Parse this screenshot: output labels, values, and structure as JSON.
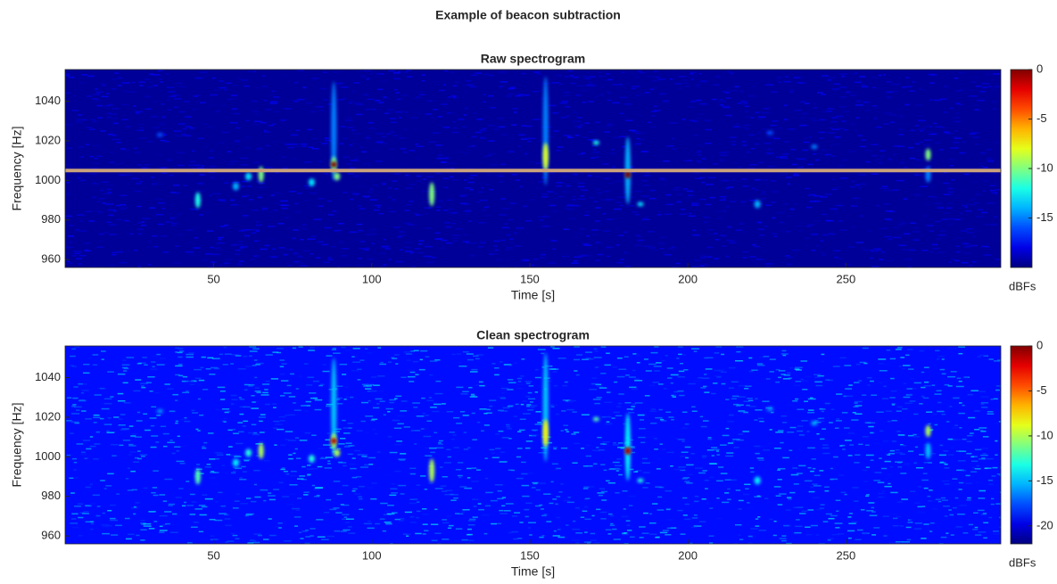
{
  "title": "Example of beacon subtraction",
  "chart_data": [
    {
      "type": "spectrogram",
      "title": "Raw spectrogram",
      "xlabel": "Time [s]",
      "ylabel": "Frequency [Hz]",
      "colorbar_label": "dBFs",
      "xlim": [
        3,
        299
      ],
      "xticks": [
        50,
        100,
        150,
        200,
        250
      ],
      "ylim": [
        956,
        1056
      ],
      "yticks": [
        960,
        980,
        1000,
        1020,
        1040
      ],
      "clim": [
        -20,
        0
      ],
      "cticks": [
        -15,
        -10,
        -5,
        0
      ],
      "colormap": "jet",
      "background_level": -19.5,
      "beacon": {
        "freq": 1005,
        "color": "#c9a27c"
      },
      "events": [
        {
          "time": 45,
          "freq": 990,
          "span": 8,
          "level": -12
        },
        {
          "time": 57,
          "freq": 997,
          "span": 4,
          "level": -14
        },
        {
          "time": 61,
          "freq": 1002,
          "span": 4,
          "level": -13
        },
        {
          "time": 65,
          "freq": 1003,
          "span": 8,
          "level": -10
        },
        {
          "time": 81,
          "freq": 999,
          "span": 4,
          "level": -13
        },
        {
          "time": 88,
          "freq": 1025,
          "span": 50,
          "level": -15
        },
        {
          "time": 88,
          "freq": 1008,
          "span": 8,
          "level": -10
        },
        {
          "time": 88,
          "freq": 1008,
          "span": 3,
          "level": 0
        },
        {
          "time": 89,
          "freq": 1002,
          "span": 4,
          "level": -10
        },
        {
          "time": 119,
          "freq": 993,
          "span": 12,
          "level": -10
        },
        {
          "time": 155,
          "freq": 1025,
          "span": 55,
          "level": -15
        },
        {
          "time": 155,
          "freq": 1012,
          "span": 14,
          "level": -8
        },
        {
          "time": 171,
          "freq": 1019,
          "span": 2,
          "level": -12
        },
        {
          "time": 181,
          "freq": 1005,
          "span": 34,
          "level": -14
        },
        {
          "time": 181,
          "freq": 1003,
          "span": 4,
          "level": 0
        },
        {
          "time": 185,
          "freq": 988,
          "span": 2,
          "level": -13
        },
        {
          "time": 222,
          "freq": 988,
          "span": 4,
          "level": -14
        },
        {
          "time": 276,
          "freq": 1013,
          "span": 6,
          "level": -10
        },
        {
          "time": 276,
          "freq": 1003,
          "span": 8,
          "level": -15
        },
        {
          "time": 33,
          "freq": 1023,
          "span": 2,
          "level": -16
        },
        {
          "time": 240,
          "freq": 1017,
          "span": 2,
          "level": -15
        },
        {
          "time": 226,
          "freq": 1024,
          "span": 2,
          "level": -16
        }
      ]
    },
    {
      "type": "spectrogram",
      "title": "Clean spectrogram",
      "xlabel": "Time [s]",
      "ylabel": "Frequency [Hz]",
      "colorbar_label": "dBFs",
      "xlim": [
        3,
        299
      ],
      "xticks": [
        50,
        100,
        150,
        200,
        250
      ],
      "ylim": [
        956,
        1056
      ],
      "yticks": [
        960,
        980,
        1000,
        1020,
        1040
      ],
      "clim": [
        -22,
        0
      ],
      "cticks": [
        -20,
        -15,
        -10,
        -5,
        0
      ],
      "colormap": "jet",
      "background_level": -19,
      "events": [
        {
          "time": 45,
          "freq": 990,
          "span": 8,
          "level": -12
        },
        {
          "time": 57,
          "freq": 997,
          "span": 4,
          "level": -14
        },
        {
          "time": 61,
          "freq": 1002,
          "span": 4,
          "level": -13
        },
        {
          "time": 65,
          "freq": 1003,
          "span": 8,
          "level": -10
        },
        {
          "time": 81,
          "freq": 999,
          "span": 4,
          "level": -13
        },
        {
          "time": 88,
          "freq": 1025,
          "span": 50,
          "level": -15
        },
        {
          "time": 88,
          "freq": 1008,
          "span": 8,
          "level": -10
        },
        {
          "time": 88,
          "freq": 1008,
          "span": 3,
          "level": -1
        },
        {
          "time": 89,
          "freq": 1002,
          "span": 4,
          "level": -10
        },
        {
          "time": 119,
          "freq": 993,
          "span": 12,
          "level": -10
        },
        {
          "time": 155,
          "freq": 1025,
          "span": 55,
          "level": -15
        },
        {
          "time": 155,
          "freq": 1012,
          "span": 14,
          "level": -8
        },
        {
          "time": 171,
          "freq": 1019,
          "span": 2,
          "level": -12
        },
        {
          "time": 181,
          "freq": 1005,
          "span": 34,
          "level": -14
        },
        {
          "time": 181,
          "freq": 1003,
          "span": 4,
          "level": -1
        },
        {
          "time": 185,
          "freq": 988,
          "span": 2,
          "level": -13
        },
        {
          "time": 222,
          "freq": 988,
          "span": 4,
          "level": -14
        },
        {
          "time": 276,
          "freq": 1013,
          "span": 6,
          "level": -10
        },
        {
          "time": 276,
          "freq": 1003,
          "span": 8,
          "level": -15
        },
        {
          "time": 33,
          "freq": 1023,
          "span": 2,
          "level": -16
        },
        {
          "time": 240,
          "freq": 1017,
          "span": 2,
          "level": -15
        },
        {
          "time": 226,
          "freq": 1024,
          "span": 2,
          "level": -16
        }
      ]
    }
  ]
}
